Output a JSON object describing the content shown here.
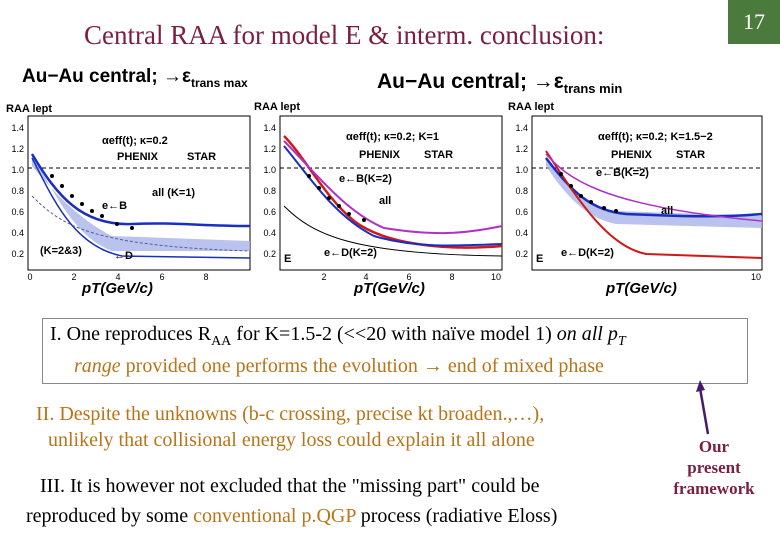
{
  "slide": {
    "title": "Central RAA for model E & interm. conclusion:",
    "number": "17",
    "header_left": "Au−Au central; →ε",
    "header_left_sub": "trans max",
    "header_right": "Au−Au central; →ε",
    "header_right_sub": "trans min"
  },
  "panels": [
    {
      "ylabel": "RAA lept",
      "model": "αeff(t); κ=0.2",
      "legend": [
        "PHENIX",
        "STAR"
      ],
      "curve_labels": [
        "all (K=1)",
        "e←B",
        "(K=2&3)",
        "←D"
      ],
      "xlabel": "pT(GeV/c)"
    },
    {
      "ylabel": "RAA lept",
      "model": "αeff(t); κ=0.2; K=1",
      "legend": [
        "PHENIX",
        "STAR"
      ],
      "curve_labels": [
        "e←B(K=2)",
        "all",
        "E",
        "e←D(K=2)"
      ],
      "xlabel": "pT(GeV/c)"
    },
    {
      "ylabel": "RAA lept",
      "model": "αeff(t); κ=0.2; K=1.5−2",
      "legend": [
        "PHENIX",
        "STAR"
      ],
      "curve_labels": [
        "e←B(K=2)",
        "all",
        "E",
        "e←D(K=2)"
      ],
      "xlabel": "pT(GeV/c)"
    }
  ],
  "chart_axes": {
    "y_ticks": [
      "1.4",
      "1.2",
      "1.0",
      "0.8",
      "0.6",
      "0.4",
      "0.2"
    ],
    "x_ticks": [
      "0",
      "2",
      "4",
      "6",
      "8",
      "10"
    ]
  },
  "conclusions": {
    "c1_a": "I. One reproduces R",
    "c1_sub": "AA",
    "c1_b": " for K=1.5-2 (<<20 with naïve model 1) ",
    "c1_c": "on all p",
    "c1_sub2": "T",
    "c1_d": "range",
    "c1_e": " provided one performs the evolution → end of mixed phase",
    "c2_line1": "II. Despite the unknowns (b-c crossing, precise kt broaden.,…),",
    "c2_line2": "unlikely that collisional energy loss could explain it all alone",
    "c3_line1": "III. It is however not excluded that the \"missing part\" could be",
    "c3_b": "reproduced by some ",
    "c3_c": "conventional",
    "c3_d": " ",
    "c3_e": "p.QGP",
    "c3_f": " process (radiative Eloss)",
    "side_note": [
      "Our",
      "present",
      "framework"
    ]
  }
}
